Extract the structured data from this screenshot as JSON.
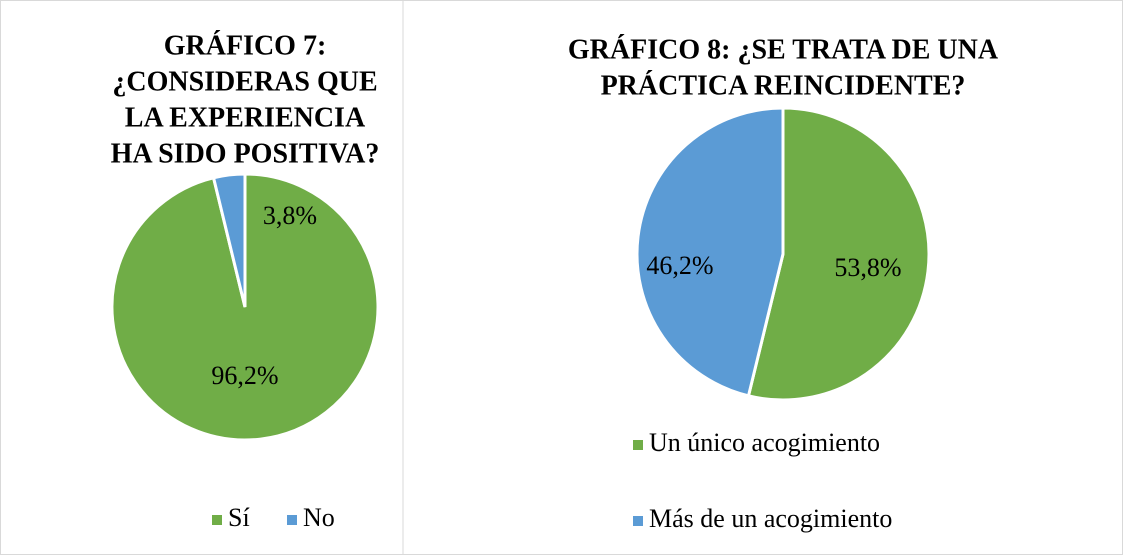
{
  "chart_data": [
    {
      "type": "pie",
      "title": [
        "GRÁFICO 7:",
        "¿CONSIDERAS QUE",
        "LA EXPERIENCIA",
        "HA SIDO POSITIVA?"
      ],
      "categories": [
        "Sí",
        "No"
      ],
      "values": [
        96.2,
        3.8
      ],
      "value_labels": [
        "96,2%",
        "3,8%"
      ],
      "colors": [
        "#70ad47",
        "#5b9bd5"
      ],
      "legend": "bottom"
    },
    {
      "type": "pie",
      "title": [
        "GRÁFICO 8: ¿SE TRATA DE UNA",
        "PRÁCTICA REINCIDENTE?"
      ],
      "categories": [
        "Un único acogimiento",
        "Más de un acogimiento"
      ],
      "values": [
        53.8,
        46.2
      ],
      "value_labels": [
        "53,8%",
        "46,2%"
      ],
      "colors": [
        "#70ad47",
        "#5b9bd5"
      ],
      "legend": "bottom"
    }
  ]
}
